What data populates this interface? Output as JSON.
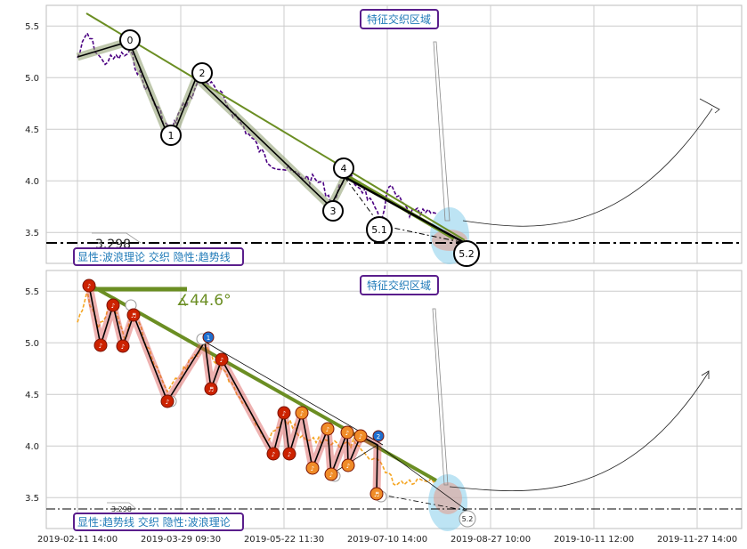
{
  "chart_data": [
    {
      "type": "line",
      "panel": "top",
      "ylim": [
        3.2,
        5.7
      ],
      "yticks": [
        "3.5",
        "4.0",
        "4.5",
        "5.0",
        "5.5"
      ],
      "region_label": "特征交织区域",
      "info_label": "显性:波浪理论 交织 隐性:趋势线",
      "ref_value_label": "3.298",
      "ref_value": 3.298,
      "wave_points": [
        {
          "label": "0",
          "t": 0.5,
          "y": 5.35
        },
        {
          "label": "1",
          "t": 0.9,
          "y": 4.38
        },
        {
          "label": "2",
          "t": 1.15,
          "y": 5.0
        },
        {
          "label": "3",
          "t": 2.45,
          "y": 3.75
        },
        {
          "label": "4",
          "t": 2.6,
          "y": 4.05
        },
        {
          "label": "5.1",
          "t": 2.93,
          "y": 3.44
        },
        {
          "label": "5.2",
          "t": 3.4,
          "y": 3.3
        }
      ],
      "colors": {
        "trend": "#6b8e23",
        "price": "#4b0082",
        "wave": "#000000",
        "region": "#87ceeb"
      }
    },
    {
      "type": "line",
      "panel": "bottom",
      "ylim": [
        3.2,
        5.7
      ],
      "yticks": [
        "3.5",
        "4.0",
        "4.5",
        "5.0",
        "5.5"
      ],
      "region_label": "特征交织区域",
      "info_label": "显性:趋势线 交织 隐性:波浪理论",
      "ref_value_label": "3.298",
      "ref_value": 3.298,
      "angle_label": "∡44.6°",
      "end_label": "5.2",
      "xticks": [
        "2019-02-11 14:00",
        "2019-03-29 09:30",
        "2019-05-22 11:30",
        "2019-07-10 14:00",
        "2019-08-27 10:00",
        "2019-10-11 12:00",
        "2019-11-27 14:00"
      ],
      "colors": {
        "trend": "#6b8e23",
        "price": "#f5a623",
        "wave": "#000000",
        "red_marker": "#cc2200",
        "orange_marker": "#f08c28",
        "blue_marker": "#1e6fd0"
      }
    }
  ]
}
